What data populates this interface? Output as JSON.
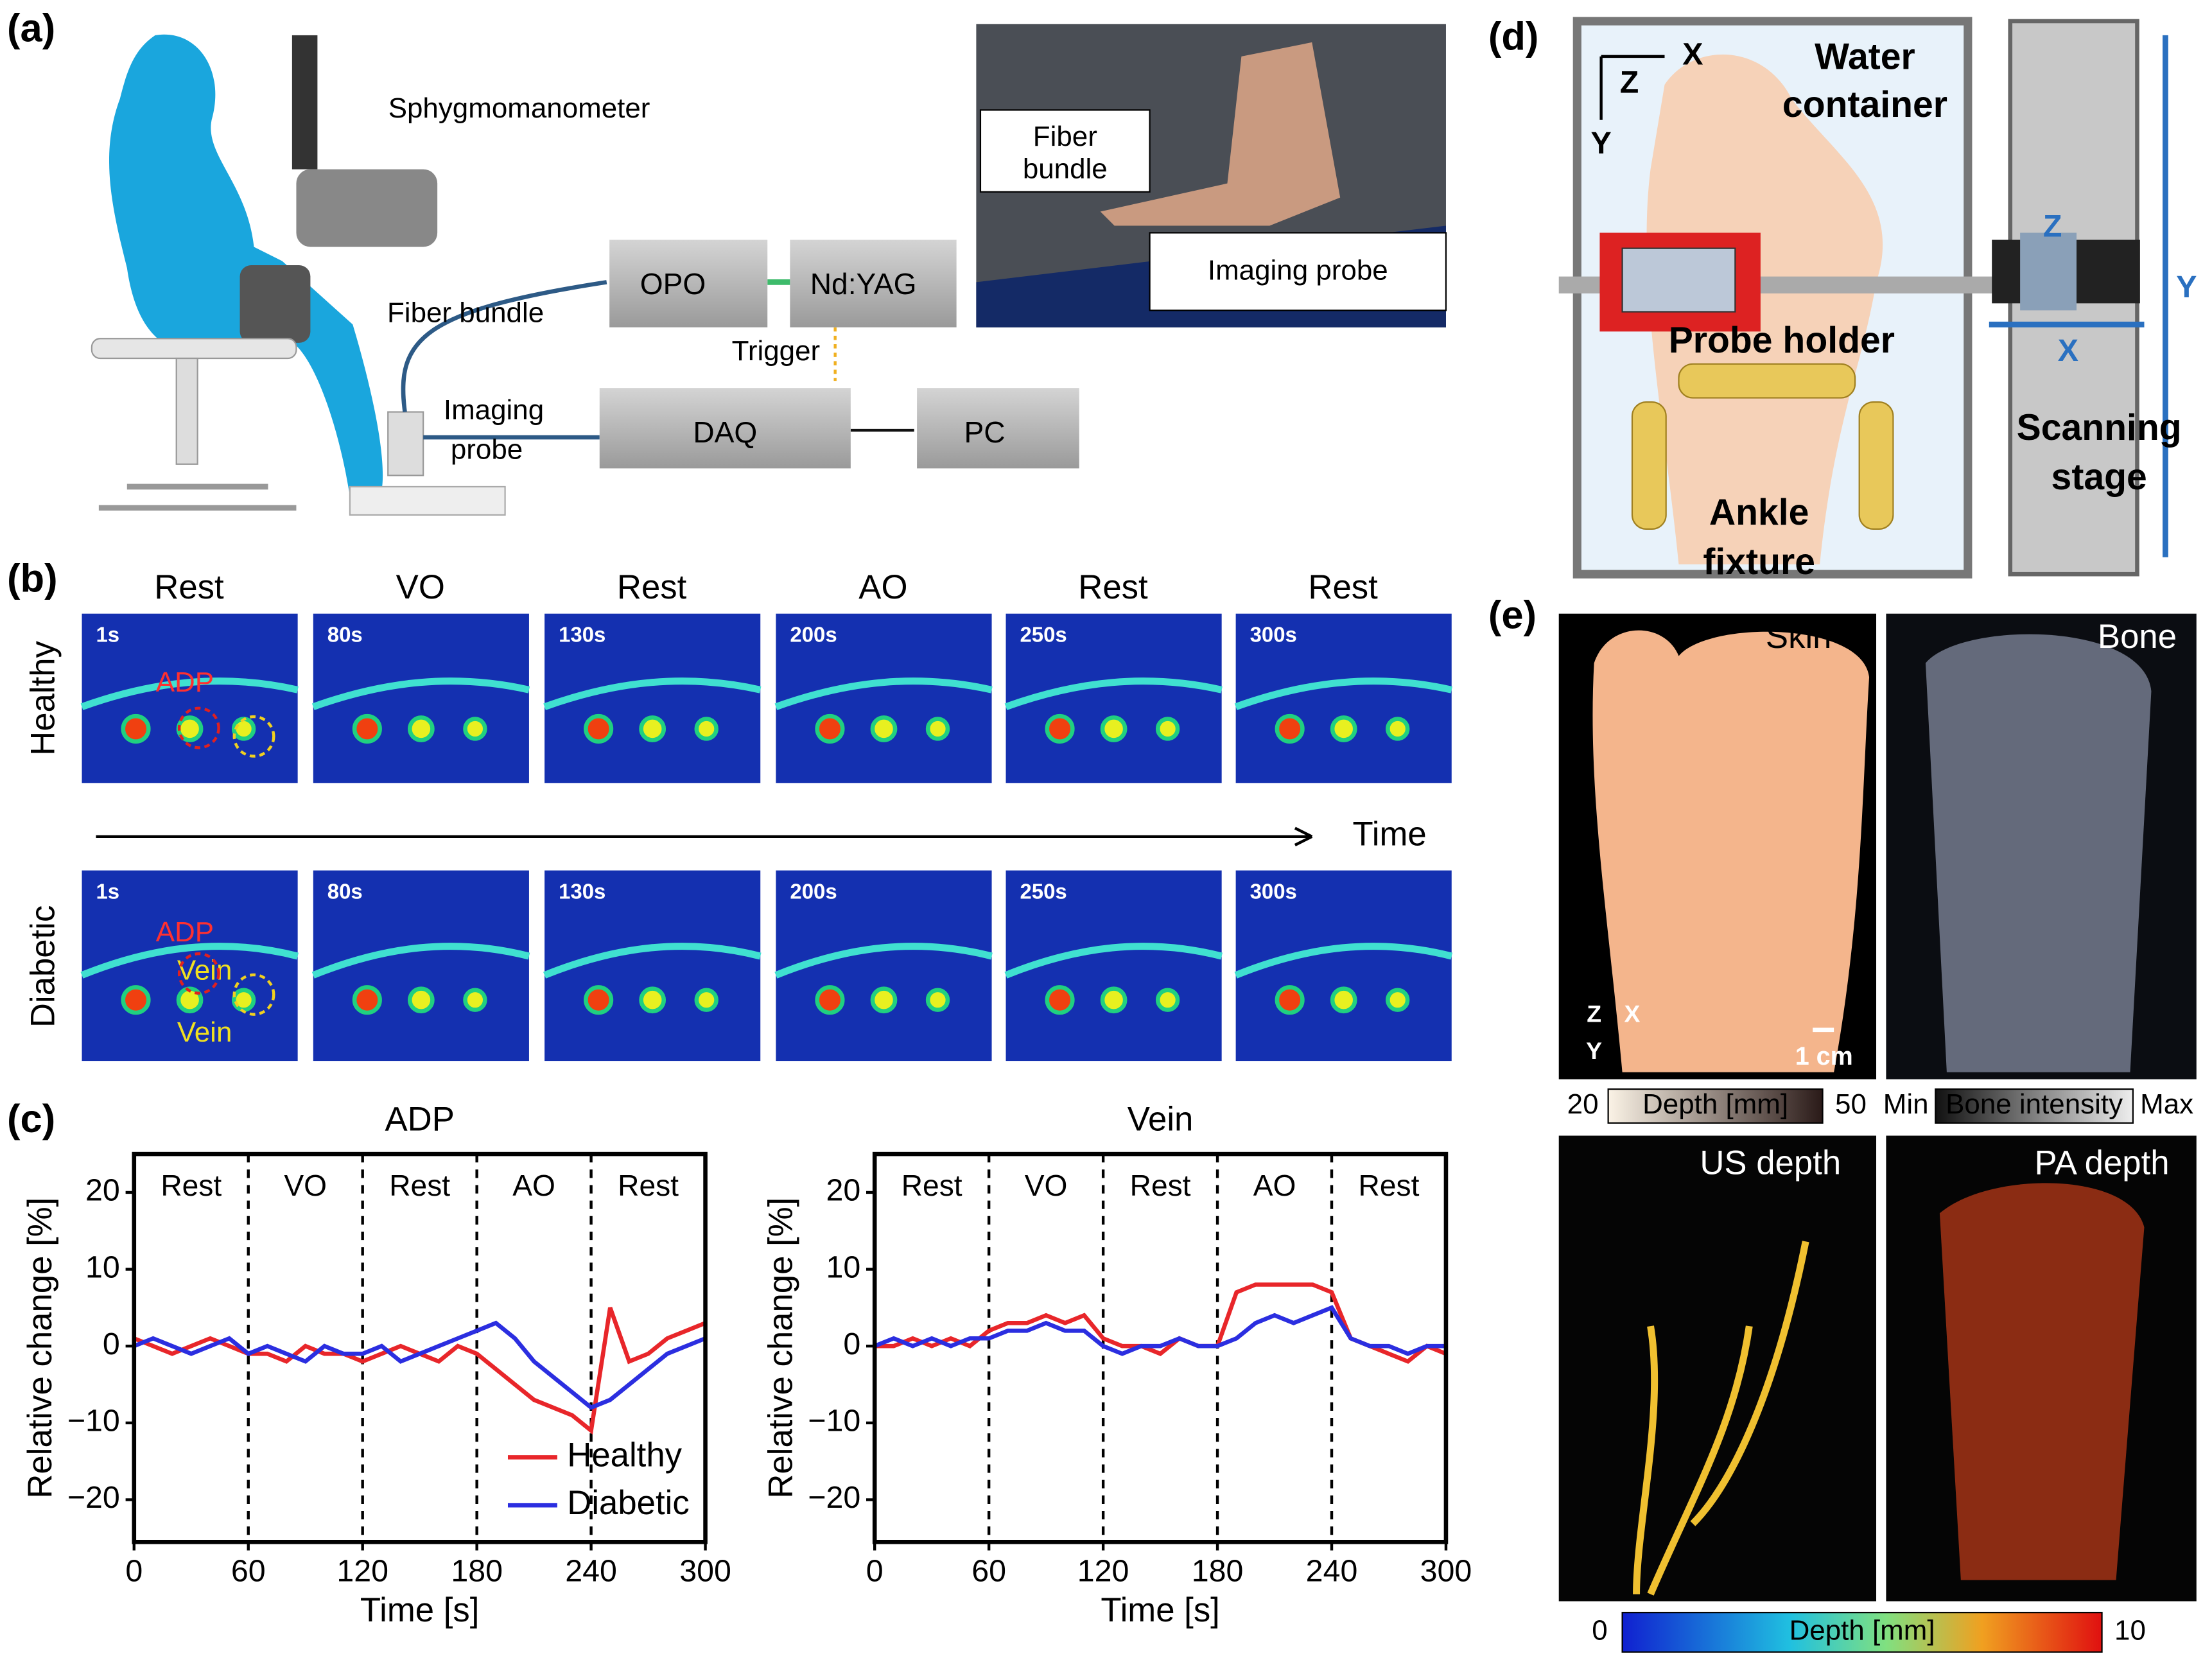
{
  "panel_labels": [
    "(a)",
    "(b)",
    "(c)",
    "(d)",
    "(e)"
  ],
  "panel_a": {
    "sphygmomanometer": "Sphygmomanometer",
    "fiber_bundle": "Fiber bundle",
    "imaging_probe": [
      "Imaging",
      "probe"
    ],
    "opo": "OPO",
    "laser": "Nd:YAG",
    "trigger": "Trigger",
    "daq": "DAQ",
    "pc": "PC",
    "photo_fiber": [
      "Fiber",
      "bundle"
    ],
    "photo_probe": "Imaging probe"
  },
  "panel_b": {
    "conditions": [
      "Rest",
      "VO",
      "Rest",
      "AO",
      "Rest",
      "Rest"
    ],
    "times": [
      "1s",
      "80s",
      "130s",
      "200s",
      "250s",
      "300s"
    ],
    "rows": [
      "Healthy",
      "Diabetic"
    ],
    "time_axis": "Time",
    "adp": "ADP",
    "vein": "Vein"
  },
  "panel_d": {
    "water_container": [
      "Water",
      "container"
    ],
    "probe_holder": "Probe holder",
    "ankle_fixture": [
      "Ankle",
      "fixture"
    ],
    "scanning_stage": [
      "Scanning",
      "stage"
    ],
    "axis_z": "Z",
    "axis_x": "X",
    "axis_y": "Y"
  },
  "panel_e": {
    "images": [
      "Skin",
      "Bone",
      "US depth",
      "PA depth"
    ],
    "scale_bar": "1 cm",
    "axis_z": "Z",
    "axis_x": "X",
    "axis_y": "Y",
    "depth_bar": {
      "min": 20,
      "label": "Depth [mm]",
      "max": 50
    },
    "bone_bar": {
      "min": "Min",
      "label": "Bone intensity",
      "max": "Max"
    },
    "color_bar": {
      "min": 0,
      "label": "Depth [mm]",
      "max": 10
    }
  },
  "chart_data": [
    {
      "type": "line",
      "title": "ADP",
      "xlabel": "Time [s]",
      "ylabel": "Relative change [%]",
      "x": [
        0,
        10,
        20,
        30,
        40,
        50,
        60,
        70,
        80,
        90,
        100,
        110,
        120,
        130,
        140,
        150,
        160,
        170,
        180,
        190,
        200,
        210,
        220,
        230,
        240,
        250,
        260,
        270,
        280,
        290,
        300
      ],
      "xlim": [
        0,
        300
      ],
      "xticks": [
        0,
        60,
        120,
        180,
        240,
        300
      ],
      "ylim": [
        -25.5,
        25
      ],
      "yticks": [
        20,
        10,
        0,
        {
          "value": -10,
          "label": "−10"
        },
        {
          "value": -20,
          "label": "−20"
        }
      ],
      "phases": [
        "Rest",
        "VO",
        "Rest",
        "AO",
        "Rest"
      ],
      "phase_boundaries": [
        60,
        120,
        180,
        240
      ],
      "legend": "lower right",
      "series": [
        {
          "name": "Healthy",
          "color": "#e8262a",
          "values": [
            1,
            0,
            -1,
            0,
            1,
            0,
            -1,
            -1,
            -2,
            0,
            -1,
            -1,
            -2,
            -1,
            0,
            -1,
            -2,
            0,
            -1,
            -3,
            -5,
            -7,
            -8,
            -9,
            -11,
            5,
            -2,
            -1,
            1,
            2,
            3
          ]
        },
        {
          "name": "Diabetic",
          "color": "#2b2ee0",
          "values": [
            0,
            1,
            0,
            -1,
            0,
            1,
            -1,
            0,
            -1,
            -2,
            0,
            -1,
            -1,
            0,
            -2,
            -1,
            0,
            1,
            2,
            3,
            1,
            -2,
            -4,
            -6,
            -8,
            -7,
            -5,
            -3,
            -1,
            0,
            1
          ]
        }
      ]
    },
    {
      "type": "line",
      "title": "Vein",
      "xlabel": "Time [s]",
      "ylabel": "Relative change [%]",
      "x": [
        0,
        10,
        20,
        30,
        40,
        50,
        60,
        70,
        80,
        90,
        100,
        110,
        120,
        130,
        140,
        150,
        160,
        170,
        180,
        190,
        200,
        210,
        220,
        230,
        240,
        250,
        260,
        270,
        280,
        290,
        300
      ],
      "xlim": [
        0,
        300
      ],
      "xticks": [
        0,
        60,
        120,
        180,
        240,
        300
      ],
      "ylim": [
        -25.5,
        25
      ],
      "yticks": [
        20,
        10,
        0,
        {
          "value": -10,
          "label": "−10"
        },
        {
          "value": -20,
          "label": "−20"
        }
      ],
      "phases": [
        "Rest",
        "VO",
        "Rest",
        "AO",
        "Rest"
      ],
      "phase_boundaries": [
        60,
        120,
        180,
        240
      ],
      "series": [
        {
          "name": "Healthy",
          "color": "#e8262a",
          "values": [
            0,
            0,
            1,
            0,
            1,
            0,
            2,
            3,
            3,
            4,
            3,
            4,
            1,
            0,
            0,
            -1,
            1,
            0,
            0,
            7,
            8,
            8,
            8,
            8,
            7,
            1,
            0,
            -1,
            -2,
            0,
            -1
          ]
        },
        {
          "name": "Diabetic",
          "color": "#2b2ee0",
          "values": [
            0,
            1,
            0,
            1,
            0,
            1,
            1,
            2,
            2,
            3,
            2,
            2,
            0,
            -1,
            0,
            0,
            1,
            0,
            0,
            1,
            3,
            4,
            3,
            4,
            5,
            1,
            0,
            0,
            -1,
            0,
            0
          ]
        }
      ]
    }
  ]
}
